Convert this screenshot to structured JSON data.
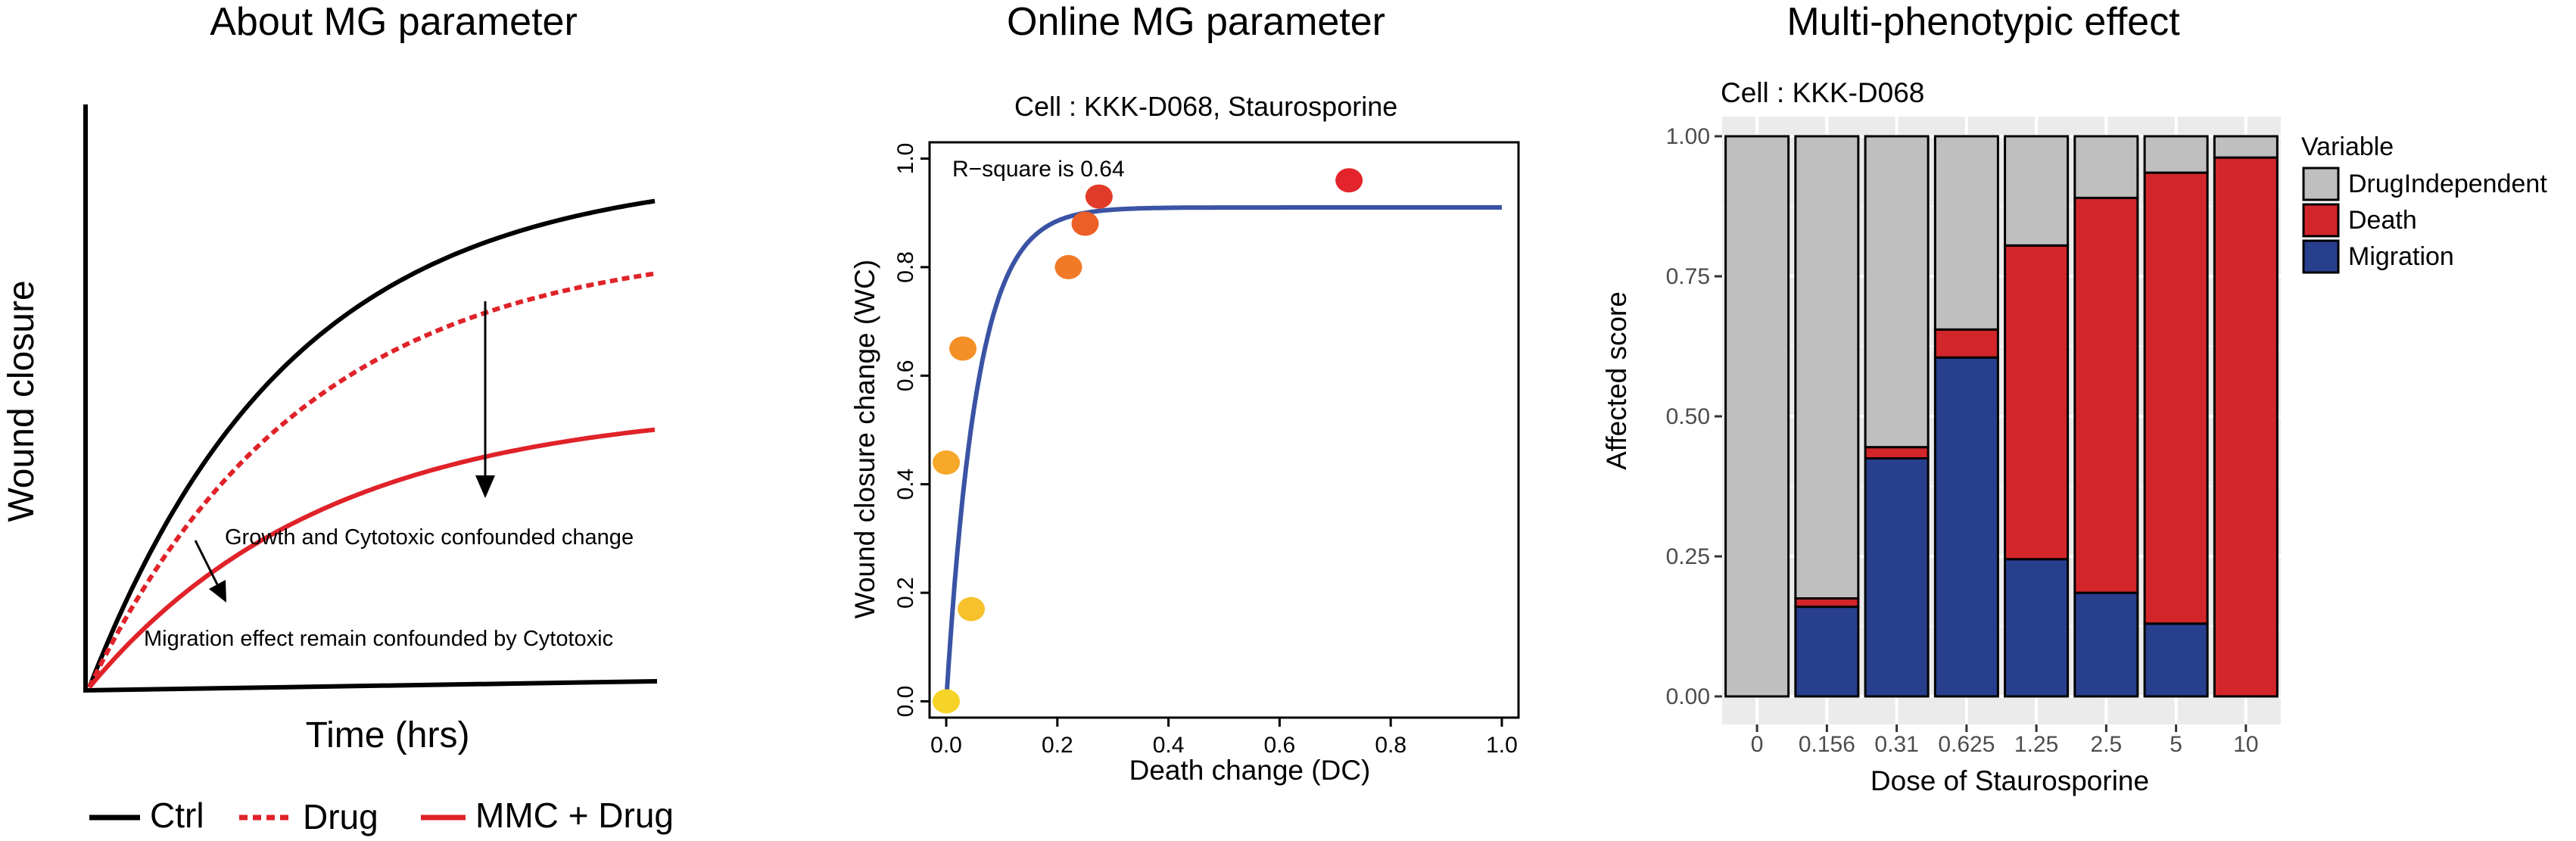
{
  "panel_a": {
    "title": "About MG parameter",
    "xlabel": "Time (hrs)",
    "ylabel": "Wound closure",
    "annotation_1": "Growth and Cytotoxic confounded change",
    "annotation_2": "Migration effect remain confounded by Cytotoxic",
    "legend": [
      {
        "label": "Ctrl",
        "color": "#000000",
        "style": "solid"
      },
      {
        "label": "Drug",
        "color": "#e02229",
        "style": "dashed"
      },
      {
        "label": "MMC + Drug",
        "color": "#e02229",
        "style": "solid"
      }
    ]
  },
  "panel_b": {
    "title": "Online MG parameter",
    "subtitle": "Cell : KKK-D068, Staurosporine",
    "rsq": "R−square is 0.64",
    "xlabel": "Death change (DC)",
    "ylabel": "Wound closure change (WC)",
    "xticks": [
      "0.0",
      "0.2",
      "0.4",
      "0.6",
      "0.8",
      "1.0"
    ],
    "yticks": [
      "0.0",
      "0.2",
      "0.4",
      "0.6",
      "0.8",
      "1.0"
    ]
  },
  "panel_c": {
    "title": "Multi-phenotypic effect",
    "subtitle": "Cell : KKK-D068",
    "xlabel": "Dose of Staurosporine",
    "ylabel": "Affected score",
    "yticks": [
      "0.00",
      "0.25",
      "0.50",
      "0.75",
      "1.00"
    ],
    "legend_title": "Variable"
  },
  "chart_data": [
    {
      "type": "line",
      "title": "About MG parameter",
      "xlabel": "Time (hrs)",
      "ylabel": "Wound closure",
      "series": [
        {
          "name": "Ctrl",
          "color": "#000000",
          "dash": "solid",
          "plateau": 0.95,
          "rate": 2.8
        },
        {
          "name": "Drug",
          "color": "#e02229",
          "dash": "dashed",
          "plateau": 0.82,
          "rate": 2.6
        },
        {
          "name": "MMC + Drug",
          "color": "#e02229",
          "dash": "solid",
          "plateau": 0.52,
          "rate": 2.4
        }
      ]
    },
    {
      "type": "scatter",
      "title": "Cell : KKK-D068, Staurosporine",
      "xlabel": "Death change (DC)",
      "ylabel": "Wound closure change (WC)",
      "xlim": [
        -0.03,
        1.03
      ],
      "ylim": [
        -0.03,
        1.03
      ],
      "points": [
        {
          "x": 0.0,
          "y": 0.0,
          "color": "#f5d327"
        },
        {
          "x": 0.045,
          "y": 0.17,
          "color": "#f7c12c"
        },
        {
          "x": 0.0,
          "y": 0.44,
          "color": "#f6a828"
        },
        {
          "x": 0.03,
          "y": 0.65,
          "color": "#f49025"
        },
        {
          "x": 0.22,
          "y": 0.8,
          "color": "#f07a26"
        },
        {
          "x": 0.25,
          "y": 0.88,
          "color": "#ec5f27"
        },
        {
          "x": 0.275,
          "y": 0.93,
          "color": "#e33b2a"
        },
        {
          "x": 0.725,
          "y": 0.96,
          "color": "#e3242b"
        }
      ],
      "fit": {
        "plateau": 0.91,
        "rate": 18,
        "color": "#3a53a4"
      }
    },
    {
      "type": "bar",
      "stacked": true,
      "title": "Cell : KKK-D068",
      "xlabel": "Dose of Staurosporine",
      "ylabel": "Affected score",
      "ylim": [
        0,
        1
      ],
      "categories": [
        "0",
        "0.156",
        "0.31",
        "0.625",
        "1.25",
        "2.5",
        "5",
        "10"
      ],
      "series": [
        {
          "name": "Migration",
          "color": "#283f8e",
          "values": [
            0.0,
            0.16,
            0.425,
            0.605,
            0.245,
            0.185,
            0.13,
            0.0
          ]
        },
        {
          "name": "Death",
          "color": "#d2262b",
          "values": [
            0.0,
            0.015,
            0.02,
            0.05,
            0.56,
            0.705,
            0.805,
            0.962
          ]
        },
        {
          "name": "DrugIndependent",
          "color": "#bfbfbf",
          "values": [
            1.0,
            0.825,
            0.555,
            0.345,
            0.195,
            0.11,
            0.065,
            0.038
          ]
        }
      ],
      "legend_order": [
        "DrugIndependent",
        "Death",
        "Migration"
      ],
      "legend_position": "right",
      "grid": true
    }
  ]
}
